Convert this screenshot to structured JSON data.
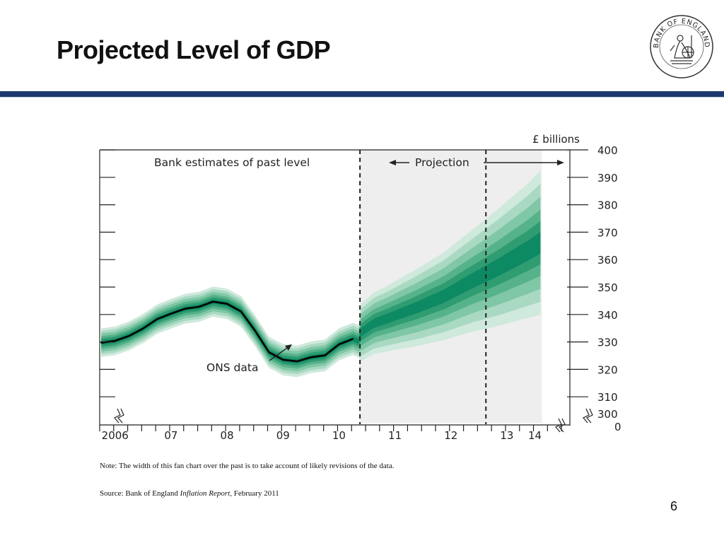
{
  "slide": {
    "title": "Projected Level of GDP",
    "page_number": "6",
    "note": "Note: The width of this fan chart over the past is to take account of likely revisions of the data.",
    "source_prefix": "Source: Bank of England ",
    "source_publication": "Inflation Report",
    "source_suffix": ", February 2011"
  },
  "logo": {
    "text": "BANK OF ENGLAND"
  },
  "colors": {
    "title_rule": "#1d3a6e",
    "fan_center": "#0d8a63",
    "fan_light": "#bfe3d2",
    "projection_shading": "#eeeeee",
    "ons_line": "#000000"
  },
  "chart_data": {
    "type": "area",
    "title": "",
    "ylabel": "£ billions",
    "xlabel": "",
    "ylim": [
      300,
      400
    ],
    "y_ticks": [
      310,
      320,
      330,
      340,
      350,
      360,
      370,
      380,
      390,
      400
    ],
    "y_tick_labels": [
      "310",
      "320",
      "330",
      "340",
      "350",
      "360",
      "370",
      "380",
      "390",
      "400"
    ],
    "y_bottom_labels": [
      "300",
      "0"
    ],
    "x_range": [
      2005.6,
      2014.0
    ],
    "x_ticks": [
      2006,
      2007,
      2008,
      2009,
      2010,
      2011,
      2012,
      2013,
      2014
    ],
    "x_tick_labels": [
      "2006",
      "07",
      "08",
      "09",
      "10",
      "11",
      "12",
      "13",
      "14"
    ],
    "x_label_positions": [
      2005.875,
      2006.875,
      2007.875,
      2008.875,
      2009.875,
      2010.875,
      2011.875,
      2012.875,
      2013.375
    ],
    "annotations": {
      "past_label": "Bank estimates of past level",
      "projection_label": "Projection",
      "ons_label": "ONS data"
    },
    "projection_start": 2010.25,
    "second_dashed_line": 2012.5,
    "fan_end": 2013.5,
    "series": [
      {
        "name": "ONS data",
        "x": [
          2005.625,
          2005.875,
          2006.125,
          2006.375,
          2006.625,
          2006.875,
          2007.125,
          2007.375,
          2007.625,
          2007.875,
          2008.125,
          2008.375,
          2008.625,
          2008.875,
          2009.125,
          2009.375,
          2009.625,
          2009.875,
          2010.125
        ],
        "values": [
          329.7,
          330.4,
          332.2,
          334.9,
          338.3,
          340.3,
          342.1,
          342.8,
          344.7,
          343.9,
          341.1,
          334.1,
          326.2,
          323.5,
          322.9,
          324.4,
          325.1,
          329.1,
          331.1
        ]
      },
      {
        "name": "Fan central projection",
        "x": [
          2010.25,
          2010.5,
          2010.75,
          2011.0,
          2011.25,
          2011.5,
          2011.75,
          2012.0,
          2012.25,
          2012.5,
          2012.75,
          2013.0,
          2013.25,
          2013.5
        ],
        "values": [
          333.5,
          335.9,
          338.2,
          340.6,
          342.8,
          345.1,
          347.3,
          350.2,
          353.0,
          355.7,
          358.5,
          361.3,
          364.0,
          366.5
        ]
      },
      {
        "name": "Fan outer band upper",
        "x": [
          2010.25,
          2010.75,
          2011.25,
          2011.75,
          2012.25,
          2012.75,
          2013.25,
          2013.5
        ],
        "values": [
          347,
          351,
          356,
          362,
          370,
          378,
          387,
          393
        ]
      },
      {
        "name": "Fan outer band lower",
        "x": [
          2010.25,
          2010.75,
          2011.25,
          2011.75,
          2012.25,
          2012.75,
          2013.25,
          2013.5
        ],
        "values": [
          326,
          327,
          328,
          330,
          333,
          335,
          338,
          340
        ]
      }
    ]
  }
}
